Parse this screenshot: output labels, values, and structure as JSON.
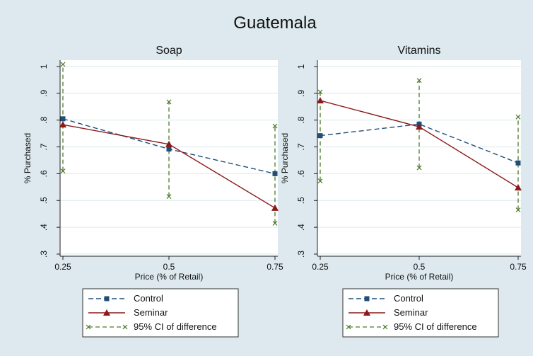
{
  "title": "Guatemala",
  "colors": {
    "control": "#1f4e79",
    "seminar": "#8b1a1a",
    "ci": "#4b7a2a",
    "figure_bg": "#dde9ee",
    "plot_bg": "#ffffff",
    "grid": "#dde9ee"
  },
  "chart_data": [
    {
      "type": "line",
      "title": "Soap",
      "xlabel": "Price (% of Retail)",
      "ylabel": "% Purchased",
      "x": [
        0.25,
        0.5,
        0.75
      ],
      "x_ticks": [
        "0.25",
        "0.5",
        "0.75"
      ],
      "ylim": [
        0.3,
        1.0
      ],
      "y_ticks": [
        ".3",
        ".4",
        ".5",
        ".6",
        ".7",
        ".8",
        ".9",
        "1"
      ],
      "grid": true,
      "legend_position": "bottom",
      "series": [
        {
          "name": "Control",
          "values": [
            0.805,
            0.692,
            0.6
          ],
          "marker": "square",
          "dash": "dashed"
        },
        {
          "name": "Seminar",
          "values": [
            0.783,
            0.71,
            0.472
          ],
          "marker": "triangle",
          "dash": "solid"
        }
      ],
      "ci": {
        "name": "95% CI of difference",
        "lower": [
          0.61,
          0.515,
          0.415
        ],
        "upper": [
          1.008,
          0.868,
          0.778
        ]
      }
    },
    {
      "type": "line",
      "title": "Vitamins",
      "xlabel": "Price (% of Retail)",
      "ylabel": "% Purchased",
      "x": [
        0.25,
        0.5,
        0.75
      ],
      "x_ticks": [
        "0.25",
        "0.5",
        "0.75"
      ],
      "ylim": [
        0.3,
        1.0
      ],
      "y_ticks": [
        ".3",
        ".4",
        ".5",
        ".6",
        ".7",
        ".8",
        ".9",
        "1"
      ],
      "grid": true,
      "legend_position": "bottom",
      "series": [
        {
          "name": "Control",
          "values": [
            0.742,
            0.785,
            0.64
          ],
          "marker": "square",
          "dash": "dashed"
        },
        {
          "name": "Seminar",
          "values": [
            0.873,
            0.775,
            0.548
          ],
          "marker": "triangle",
          "dash": "solid"
        }
      ],
      "ci": {
        "name": "95% CI of difference",
        "lower": [
          0.573,
          0.622,
          0.465
        ],
        "upper": [
          0.905,
          0.948,
          0.812
        ]
      }
    }
  ]
}
